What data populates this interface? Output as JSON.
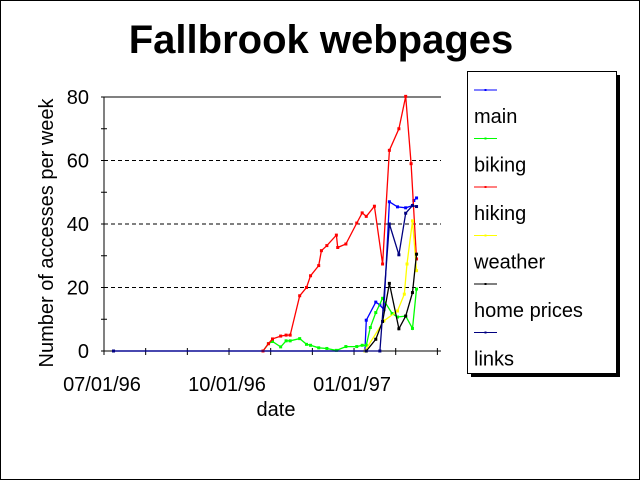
{
  "chart_data": {
    "type": "line",
    "title": "Fallbrook webpages",
    "xlabel": "date",
    "ylabel": "Number of accesses per week",
    "xlim": [
      "1996-07-01",
      "1997-03-06"
    ],
    "ylim": [
      0,
      80
    ],
    "x_tick_labels": [
      "07/01/96",
      "10/01/96",
      "01/01/97"
    ],
    "x_tick_dates": [
      "1996-07-01",
      "1996-10-01",
      "1997-01-01"
    ],
    "y_tick_labels": [
      "0",
      "20",
      "40",
      "60",
      "80"
    ],
    "y_ticks": [
      0,
      20,
      40,
      60,
      80
    ],
    "grid": "horizontal dashed at 20, 40, 60",
    "legend_position": "right",
    "series": [
      {
        "name": "main",
        "color": "#0000ff",
        "points": [
          [
            "1996-07-08",
            0
          ],
          [
            "1997-01-09",
            0
          ],
          [
            "1997-01-10",
            9.7
          ],
          [
            "1997-01-17",
            15.4
          ],
          [
            "1997-01-20",
            14.5
          ],
          [
            "1997-01-23",
            13
          ],
          [
            "1997-01-27",
            47
          ],
          [
            "1997-02-02",
            45.4
          ],
          [
            "1997-02-08",
            45.1
          ],
          [
            "1997-02-13",
            45.8
          ],
          [
            "1997-02-14",
            47.4
          ],
          [
            "1997-02-16",
            48.2
          ]
        ]
      },
      {
        "name": "biking",
        "color": "#00ff00",
        "points": [
          [
            "1996-10-26",
            0
          ],
          [
            "1996-10-30",
            2.3
          ],
          [
            "1996-11-02",
            3
          ],
          [
            "1996-11-08",
            1.3
          ],
          [
            "1996-11-12",
            3.2
          ],
          [
            "1996-11-15",
            3.2
          ],
          [
            "1996-11-22",
            3.9
          ],
          [
            "1996-11-27",
            2.1
          ],
          [
            "1996-11-30",
            1.8
          ],
          [
            "1996-12-06",
            1
          ],
          [
            "1996-12-12",
            0.8
          ],
          [
            "1996-12-19",
            0.2
          ],
          [
            "1996-12-26",
            1.4
          ],
          [
            "1997-01-03",
            1.4
          ],
          [
            "1997-01-07",
            1.8
          ],
          [
            "1997-01-10",
            1.8
          ],
          [
            "1997-01-13",
            7.4
          ],
          [
            "1997-01-17",
            12.1
          ],
          [
            "1997-01-22",
            16.6
          ],
          [
            "1997-01-29",
            11.8
          ],
          [
            "1997-02-02",
            10.7
          ],
          [
            "1997-02-08",
            11
          ],
          [
            "1997-02-13",
            7.1
          ],
          [
            "1997-02-16",
            19.5
          ]
        ]
      },
      {
        "name": "hiking",
        "color": "#ff0000",
        "points": [
          [
            "1996-10-26",
            0
          ],
          [
            "1996-10-30",
            2.3
          ],
          [
            "1996-11-02",
            3.8
          ],
          [
            "1996-11-08",
            4.7
          ],
          [
            "1996-11-12",
            5
          ],
          [
            "1996-11-15",
            5
          ],
          [
            "1996-11-22",
            17.4
          ],
          [
            "1996-11-27",
            20
          ],
          [
            "1996-11-30",
            23.7
          ],
          [
            "1996-12-06",
            26.9
          ],
          [
            "1996-12-08",
            31.6
          ],
          [
            "1996-12-12",
            33.2
          ],
          [
            "1996-12-19",
            36.5
          ],
          [
            "1996-12-20",
            32.6
          ],
          [
            "1996-12-26",
            33.7
          ],
          [
            "1997-01-03",
            40.3
          ],
          [
            "1997-01-07",
            43.5
          ],
          [
            "1997-01-10",
            42.4
          ],
          [
            "1997-01-16",
            45.6
          ],
          [
            "1997-01-22",
            27.4
          ],
          [
            "1997-01-27",
            63.2
          ],
          [
            "1997-02-03",
            70
          ],
          [
            "1997-02-08",
            80.2
          ],
          [
            "1997-02-12",
            59
          ],
          [
            "1997-02-16",
            29
          ]
        ]
      },
      {
        "name": "weather",
        "color": "#ffff00",
        "points": [
          [
            "1997-01-09",
            0
          ],
          [
            "1997-01-23",
            9.5
          ],
          [
            "1997-02-02",
            12.6
          ],
          [
            "1997-02-07",
            17.9
          ],
          [
            "1997-02-09",
            27.4
          ],
          [
            "1997-02-13",
            41
          ],
          [
            "1997-02-16",
            25.3
          ]
        ]
      },
      {
        "name": "home prices",
        "color": "#000000",
        "points": [
          [
            "1997-01-10",
            0
          ],
          [
            "1997-01-17",
            3.7
          ],
          [
            "1997-01-22",
            9.3
          ],
          [
            "1997-01-27",
            21.3
          ],
          [
            "1997-02-03",
            7
          ],
          [
            "1997-02-08",
            11
          ],
          [
            "1997-02-13",
            18.4
          ],
          [
            "1997-02-16",
            30.5
          ]
        ]
      },
      {
        "name": "links",
        "color": "#000080",
        "points": [
          [
            "1996-07-08",
            0
          ],
          [
            "1997-01-20",
            0
          ],
          [
            "1997-01-27",
            40
          ],
          [
            "1997-02-03",
            30.3
          ],
          [
            "1997-02-08",
            43.4
          ],
          [
            "1997-02-13",
            45.8
          ],
          [
            "1997-02-16",
            45.5
          ]
        ]
      }
    ]
  }
}
